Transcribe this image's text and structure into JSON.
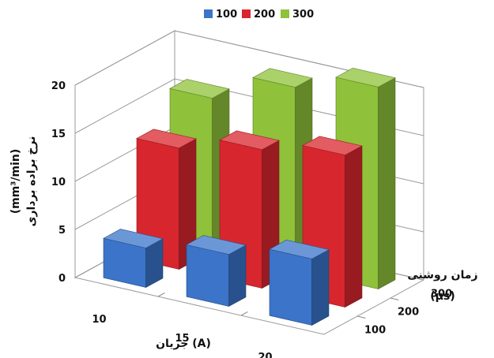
{
  "chart_data": {
    "type": "bar",
    "subtype": "3d-column",
    "x_axis": {
      "label": "جریان (A)",
      "categories": [
        "10",
        "15",
        "20"
      ]
    },
    "depth_axis": {
      "label": "زمان روشنی",
      "unit": "(µs)",
      "categories": [
        "100",
        "200",
        "300"
      ]
    },
    "y_axis": {
      "label_main": "نرخ براده برداری",
      "label_unit": "(mm³/min)",
      "range": [
        0,
        20
      ],
      "ticks": [
        "0",
        "5",
        "10",
        "15",
        "20"
      ]
    },
    "legend": {
      "position": "top"
    },
    "grid": true,
    "series": [
      {
        "name": "100",
        "color": "#3b74c9",
        "values": [
          4.1,
          5.4,
          6.9
        ]
      },
      {
        "name": "200",
        "color": "#d8262e",
        "values": [
          12.6,
          14.4,
          15.8
        ]
      },
      {
        "name": "300",
        "color": "#8fc13a",
        "values": [
          15.9,
          19.0,
          21.0
        ]
      }
    ]
  }
}
